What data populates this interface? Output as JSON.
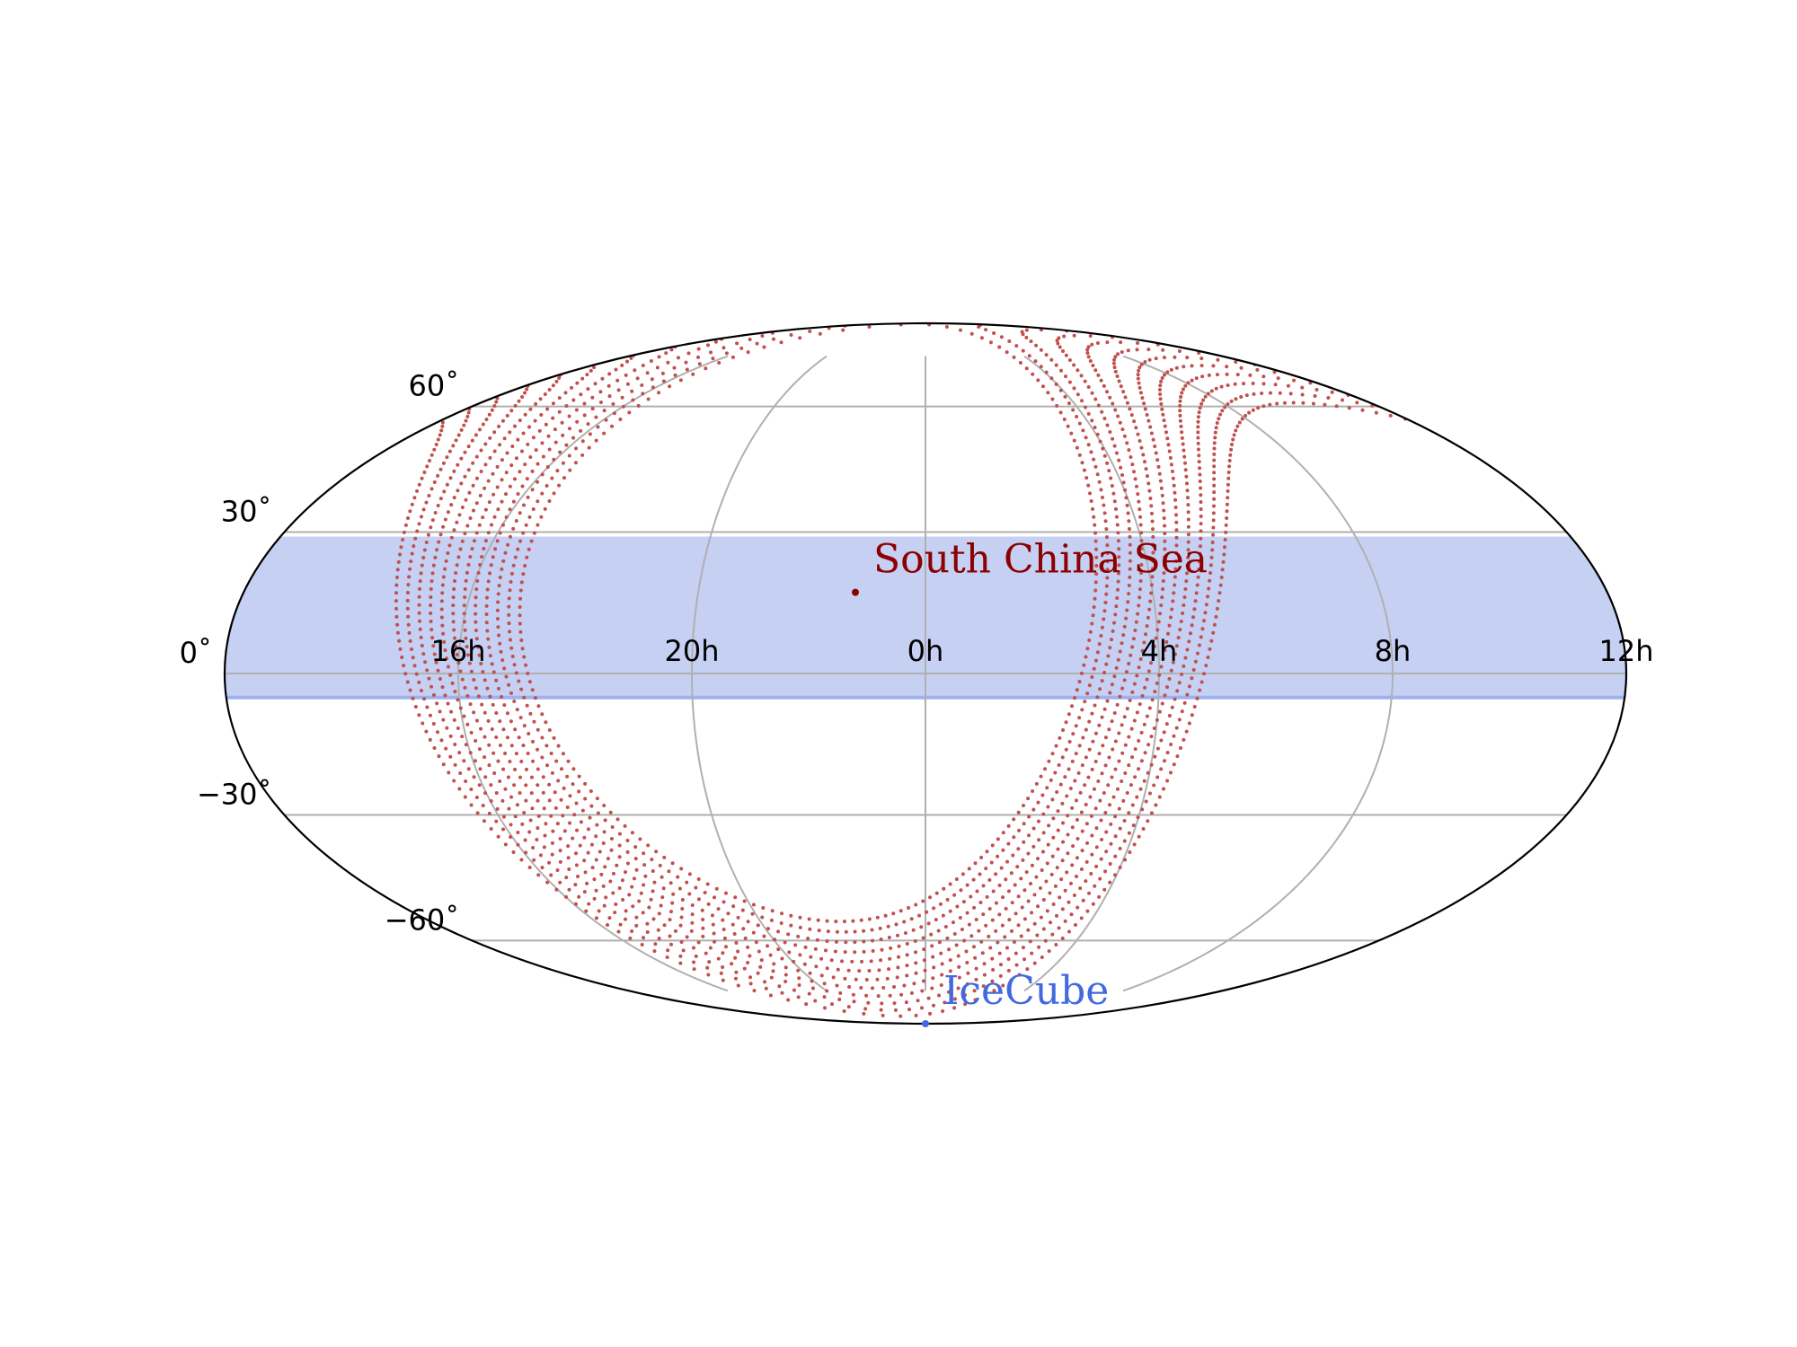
{
  "chart_data": {
    "type": "scatter",
    "projection": "mollweide",
    "grid": true,
    "colors": {
      "frame": "#000000",
      "grid": "#b0b0b0",
      "band_fill": "#c5d0f3",
      "band_edge": "#9eb1f0",
      "track": "#c0504d",
      "south_china_sea": "#8b0000",
      "icecube": "#4169e1"
    },
    "ra_ticks": [
      {
        "label": "16h",
        "lon_deg": -120
      },
      {
        "label": "20h",
        "lon_deg": -60
      },
      {
        "label": "0h",
        "lon_deg": 0
      },
      {
        "label": "4h",
        "lon_deg": 60
      },
      {
        "label": "8h",
        "lon_deg": 120
      },
      {
        "label": "12h",
        "lon_deg": 180
      }
    ],
    "dec_ticks": [
      {
        "label": "60˚",
        "dec_deg": 60
      },
      {
        "label": "30˚",
        "dec_deg": 30
      },
      {
        "label": "0˚",
        "dec_deg": 0
      },
      {
        "label": "−30˚",
        "dec_deg": -30
      },
      {
        "label": "−60˚",
        "dec_deg": -60
      }
    ],
    "band": {
      "dec_min": -5,
      "dec_max": 29
    },
    "sites": [
      {
        "label": "South China Sea",
        "ra_deg": -18.5,
        "dec_deg": 17,
        "color_key": "south_china_sea"
      },
      {
        "label": "IceCube",
        "ra_deg": 0,
        "dec_deg": -90,
        "color_key": "icecube"
      }
    ],
    "track": {
      "pole_ra_deg": -31,
      "pole_dec_deg": 17,
      "colatitude_min": 72,
      "colatitude_max": 102
    }
  }
}
